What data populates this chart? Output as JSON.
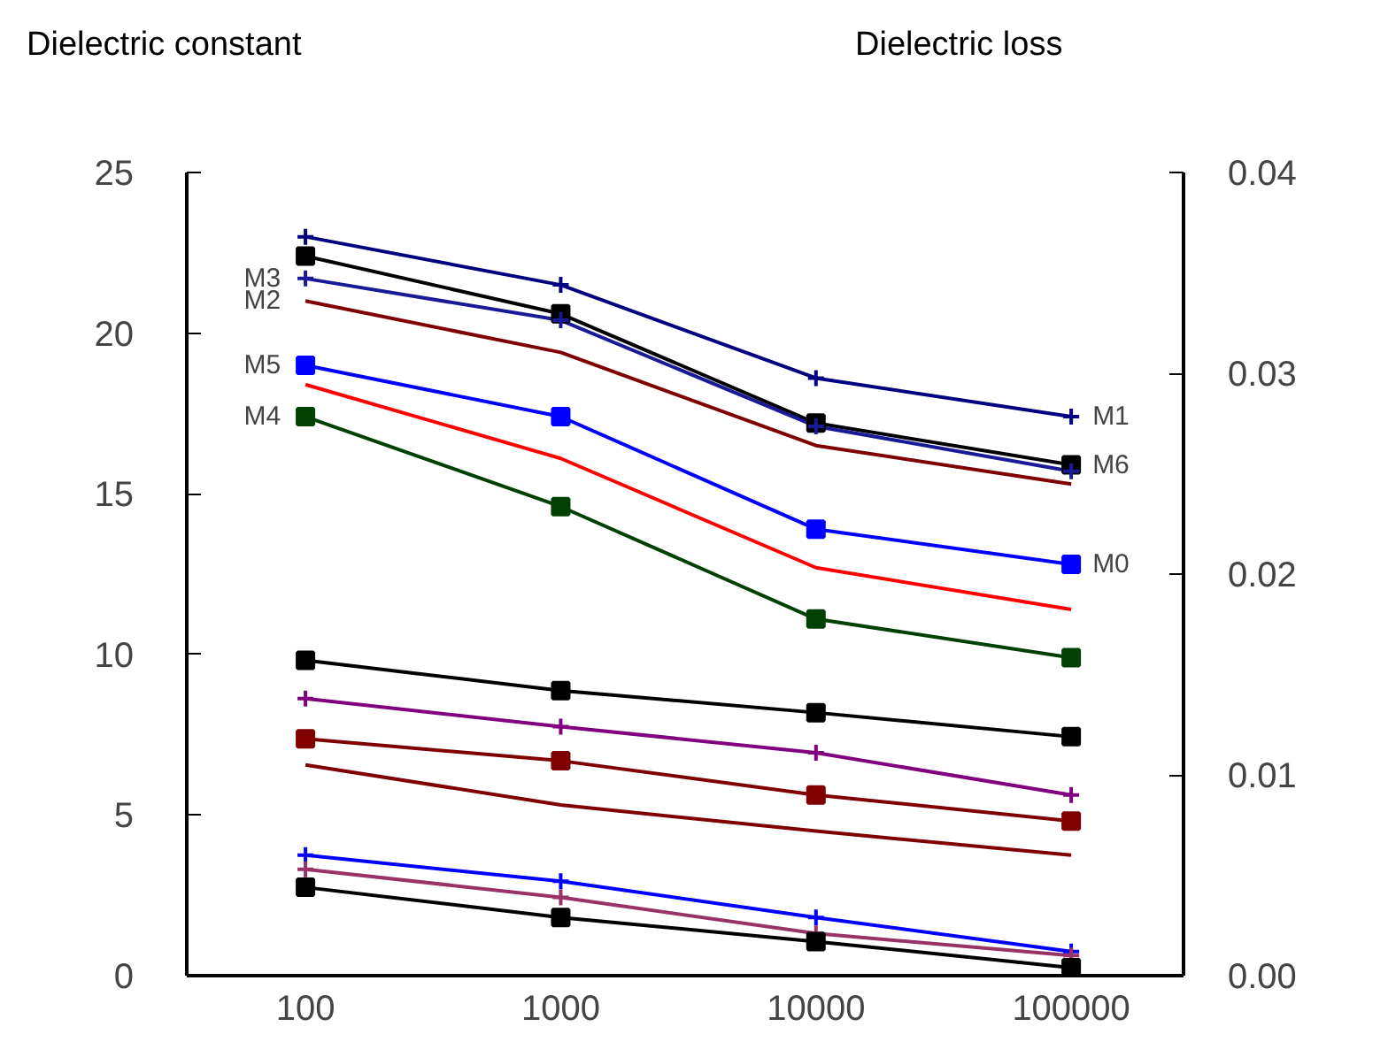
{
  "chart_data": {
    "type": "line",
    "categories": [
      "100",
      "1000",
      "10000",
      "100000"
    ],
    "ylabel": "Dielectric constant",
    "y2label": "Dielectric loss",
    "ylim": [
      0,
      25
    ],
    "yticks": [
      0,
      5,
      10,
      15,
      20,
      25
    ],
    "y2lim": [
      0,
      0.04
    ],
    "y2ticks": [
      {
        "value": 0,
        "label": "0.00"
      },
      0.01,
      0.02,
      0.03,
      0.04
    ],
    "grid": false,
    "line_style": "solid",
    "series": [
      {
        "color": "#000080",
        "values": [
          23.0,
          21.5,
          18.6,
          17.4
        ],
        "marker": "cross"
      },
      {
        "color": "#000000",
        "values": [
          22.4,
          20.6,
          17.2,
          15.9
        ],
        "marker": "square"
      },
      {
        "color": "#1a1a99",
        "values": [
          21.7,
          20.4,
          17.1,
          15.7
        ],
        "marker": "cross"
      },
      {
        "color": "#800000",
        "values": [
          21.0,
          19.4,
          16.5,
          15.3
        ],
        "marker": "none"
      },
      {
        "color": "#0000ff",
        "values": [
          19.0,
          17.4,
          13.9,
          12.8
        ],
        "marker": "square"
      },
      {
        "color": "#ff0000",
        "values": [
          18.4,
          16.1,
          12.7,
          11.4
        ],
        "marker": "none"
      },
      {
        "color": "#004000",
        "values": [
          17.4,
          14.6,
          11.1,
          9.9
        ],
        "marker": "square"
      },
      {
        "color": "#000000",
        "values": [
          0.0157,
          0.0142,
          0.0131,
          0.0119
        ],
        "axis": "y2",
        "marker": "square"
      },
      {
        "color": "#800080",
        "values": [
          0.0138,
          0.0124,
          0.0111,
          0.009
        ],
        "axis": "y2",
        "marker": "cross"
      },
      {
        "color": "#800000",
        "values": [
          0.0118,
          0.0107,
          0.009,
          0.0077
        ],
        "axis": "y2",
        "marker": "square"
      },
      {
        "color": "#800000",
        "values": [
          0.0105,
          0.0085,
          0.0072,
          0.006
        ],
        "axis": "y2",
        "marker": "none"
      },
      {
        "color": "#0000ff",
        "values": [
          0.006,
          0.0047,
          0.0029,
          0.0012
        ],
        "axis": "y2",
        "marker": "cross"
      },
      {
        "color": "#993366",
        "values": [
          0.0053,
          0.0039,
          0.0021,
          0.001
        ],
        "axis": "y2",
        "marker": "cross"
      },
      {
        "color": "#000000",
        "values": [
          0.0044,
          0.0029,
          0.0017,
          0.0004
        ],
        "axis": "y2",
        "marker": "square"
      }
    ],
    "annotations": [
      {
        "text": "M3",
        "x": "100",
        "y": 21.7
      },
      {
        "text": "M2",
        "x": "100",
        "y": 21.0
      },
      {
        "text": "M5",
        "x": "100",
        "y": 19.0
      },
      {
        "text": "M4",
        "x": "100",
        "y": 17.4
      },
      {
        "text": "M1",
        "x": "100000",
        "y": 17.4
      },
      {
        "text": "M6",
        "x": "100000",
        "y": 15.9
      },
      {
        "text": "M0",
        "x": "100000",
        "y": 12.8
      }
    ]
  }
}
